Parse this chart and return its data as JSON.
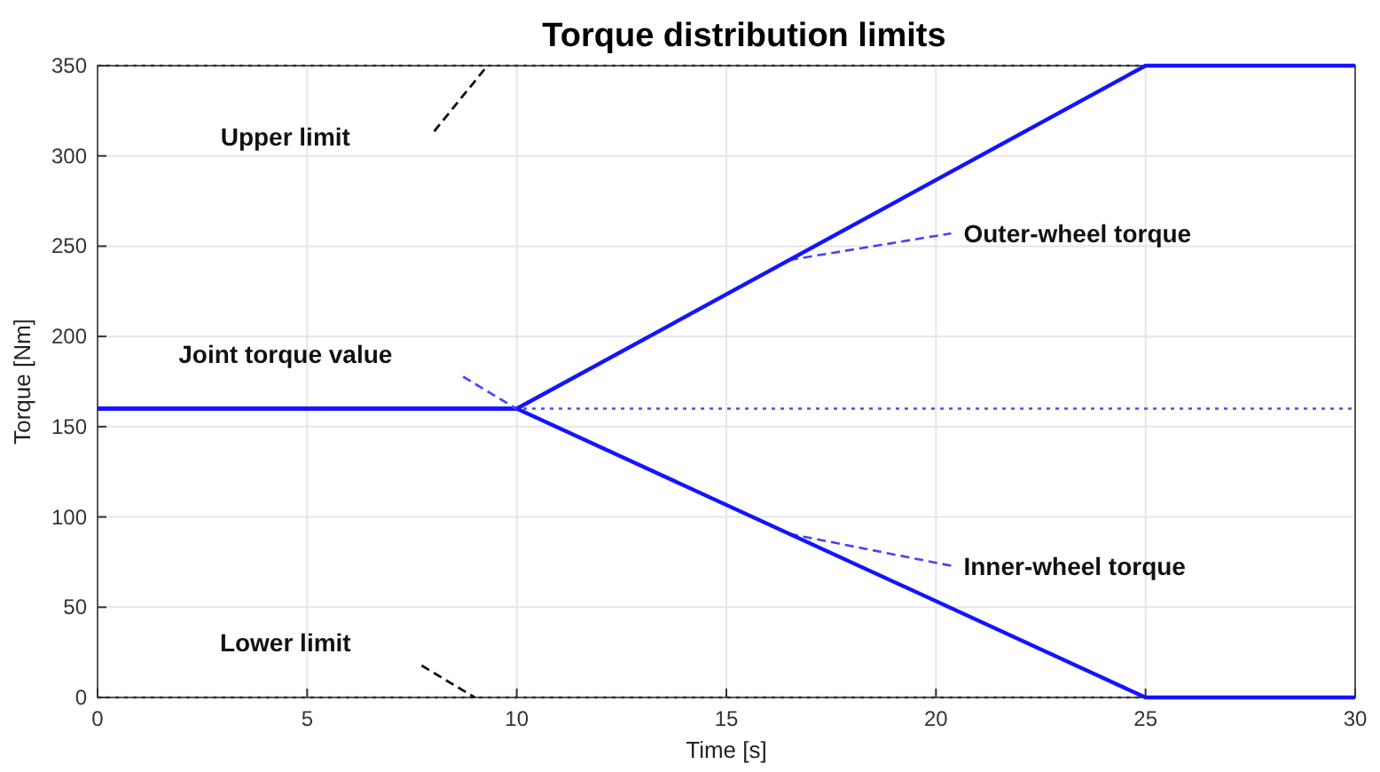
{
  "chart_data": {
    "type": "line",
    "title": "Torque distribution limits",
    "xlabel": "Time [s]",
    "ylabel": "Torque [Nm]",
    "x": [
      0,
      10,
      25,
      30
    ],
    "series": [
      {
        "name": "Outer-wheel torque",
        "color": "#1414ff",
        "values": [
          160,
          160,
          350,
          350
        ]
      },
      {
        "name": "Inner-wheel torque",
        "color": "#1414ff",
        "values": [
          160,
          160,
          0,
          0
        ]
      }
    ],
    "xlim": [
      0,
      30
    ],
    "xticks": [
      0,
      5,
      10,
      15,
      20,
      25,
      30
    ],
    "ylim": [
      0,
      350
    ],
    "yticks": [
      0,
      50,
      100,
      150,
      200,
      250,
      300,
      350
    ],
    "grid": true,
    "marker": "none",
    "line_style": "solid",
    "ref_lines": [
      {
        "axis": "y",
        "value": 350,
        "label": "Upper limit",
        "color": "#333333",
        "line_style": "dotted"
      },
      {
        "axis": "y",
        "value": 160,
        "label": "Joint torque value",
        "color": "#4a4aff",
        "line_style": "dotted"
      },
      {
        "axis": "y",
        "value": 0,
        "label": "Lower limit",
        "color": "#333333",
        "line_style": "dotted"
      }
    ]
  }
}
